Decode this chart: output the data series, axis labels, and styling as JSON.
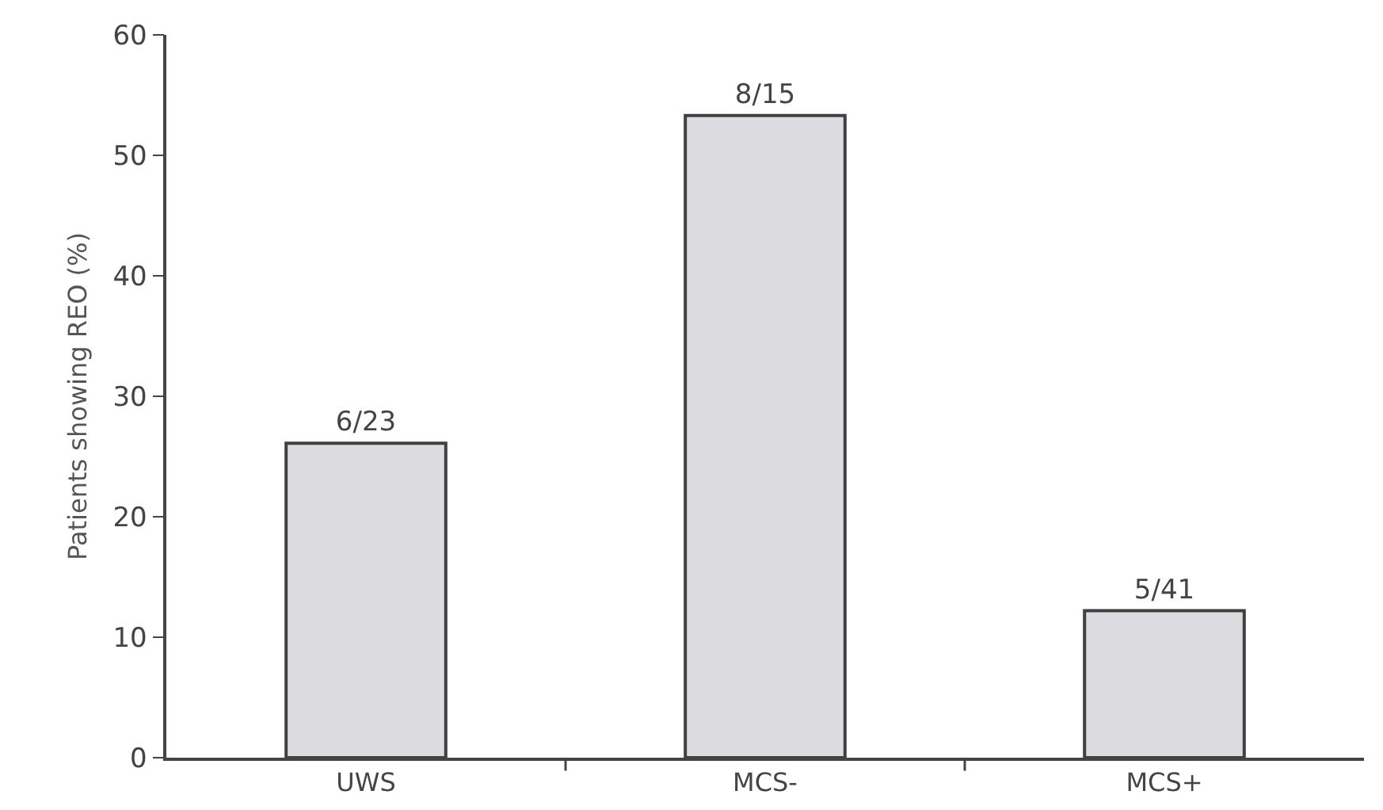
{
  "chart_data": {
    "type": "bar",
    "ylabel": "Patients showing REO (%)",
    "categories": [
      "UWS",
      "MCS-",
      "MCS+"
    ],
    "values": [
      26.1,
      53.3,
      12.2
    ],
    "value_labels": [
      "6/23",
      "8/15",
      "5/41"
    ],
    "color": "#dcdbe0",
    "ylim": [
      0,
      60
    ],
    "yticks": [
      0,
      10,
      20,
      30,
      40,
      50,
      60
    ],
    "grid": false,
    "legend": false
  }
}
